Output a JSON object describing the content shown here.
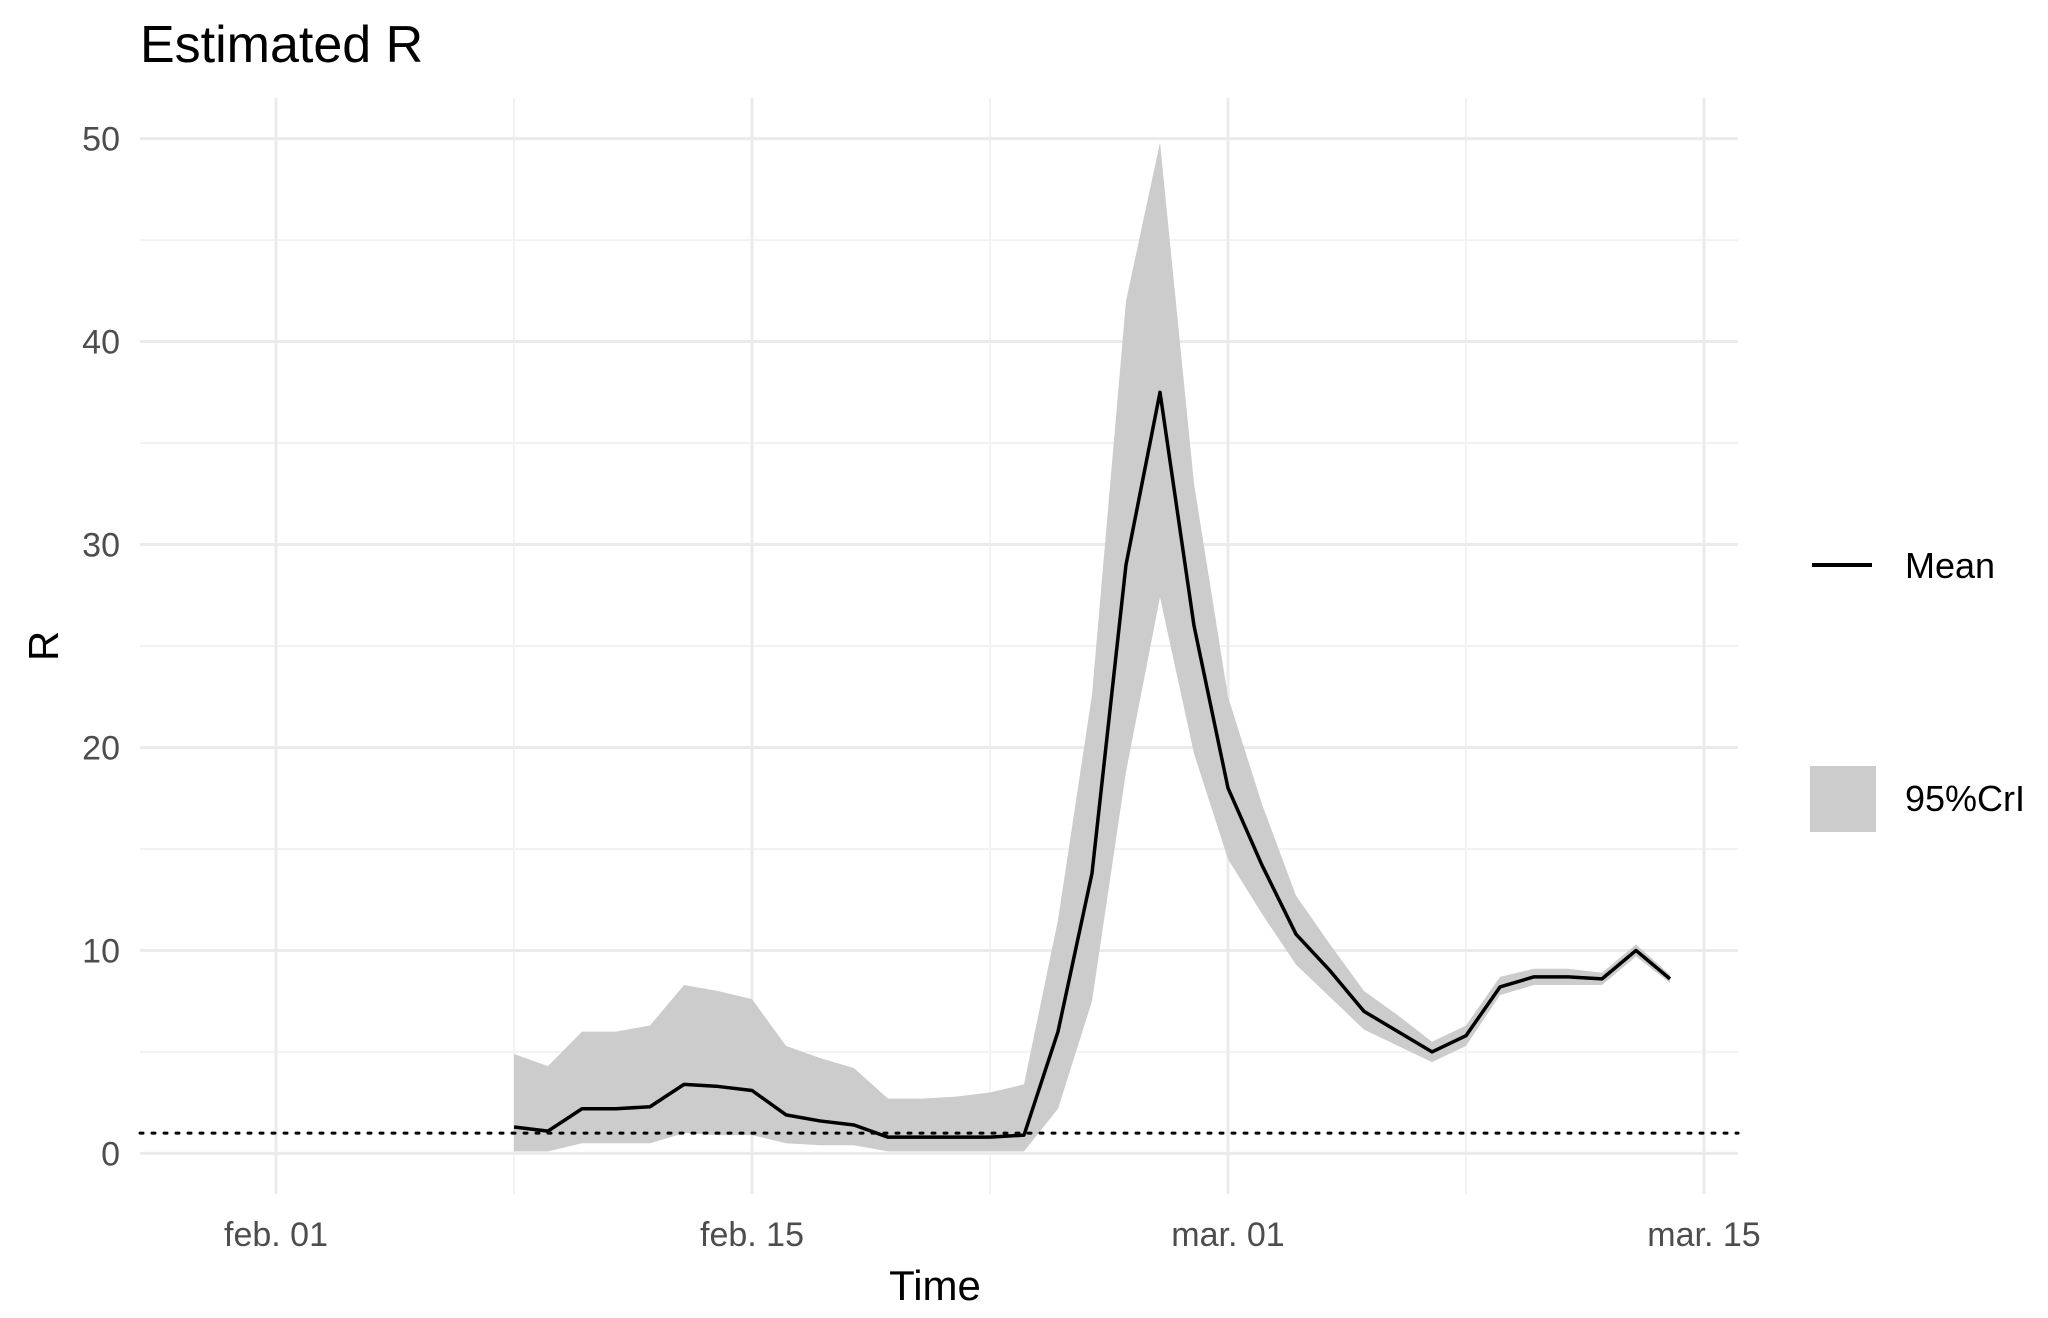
{
  "chart_data": {
    "type": "line",
    "title": "Estimated R",
    "xlabel": "Time",
    "ylabel": "R",
    "x_ticks": [
      "feb. 01",
      "feb. 15",
      "mar. 01",
      "mar. 15"
    ],
    "y_ticks": [
      0,
      10,
      20,
      30,
      40,
      50
    ],
    "ylim": [
      -2,
      52
    ],
    "xlim": [
      "2021-01-28",
      "2021-03-16"
    ],
    "reference_line": {
      "y": 1,
      "style": "dotted"
    },
    "grid": true,
    "legend": {
      "position": "right",
      "entries": [
        "Mean",
        "95%CrI"
      ]
    },
    "series": [
      {
        "name": "Mean",
        "type": "line",
        "color": "#000000",
        "x": [
          "2021-02-08",
          "2021-02-09",
          "2021-02-10",
          "2021-02-11",
          "2021-02-12",
          "2021-02-13",
          "2021-02-14",
          "2021-02-15",
          "2021-02-16",
          "2021-02-17",
          "2021-02-18",
          "2021-02-19",
          "2021-02-20",
          "2021-02-21",
          "2021-02-22",
          "2021-02-23",
          "2021-02-24",
          "2021-02-25",
          "2021-02-26",
          "2021-02-27",
          "2021-02-28",
          "2021-03-01",
          "2021-03-02",
          "2021-03-03",
          "2021-03-04",
          "2021-03-05",
          "2021-03-06",
          "2021-03-07",
          "2021-03-08",
          "2021-03-09",
          "2021-03-10",
          "2021-03-11",
          "2021-03-12",
          "2021-03-13",
          "2021-03-14"
        ],
        "y": [
          1.3,
          1.1,
          2.2,
          2.2,
          2.3,
          3.4,
          3.3,
          3.1,
          1.9,
          1.6,
          1.4,
          0.8,
          0.8,
          0.8,
          0.8,
          0.9,
          6.0,
          13.8,
          29.0,
          37.5,
          26.0,
          18.0,
          14.2,
          10.8,
          9.0,
          7.0,
          6.0,
          5.0,
          5.8,
          8.2,
          8.7,
          8.7,
          8.6,
          10.0,
          8.6
        ]
      },
      {
        "name": "95%CrI",
        "type": "band",
        "color": "#cccccc",
        "x": [
          "2021-02-08",
          "2021-02-09",
          "2021-02-10",
          "2021-02-11",
          "2021-02-12",
          "2021-02-13",
          "2021-02-14",
          "2021-02-15",
          "2021-02-16",
          "2021-02-17",
          "2021-02-18",
          "2021-02-19",
          "2021-02-20",
          "2021-02-21",
          "2021-02-22",
          "2021-02-23",
          "2021-02-24",
          "2021-02-25",
          "2021-02-26",
          "2021-02-27",
          "2021-02-28",
          "2021-03-01",
          "2021-03-02",
          "2021-03-03",
          "2021-03-04",
          "2021-03-05",
          "2021-03-06",
          "2021-03-07",
          "2021-03-08",
          "2021-03-09",
          "2021-03-10",
          "2021-03-11",
          "2021-03-12",
          "2021-03-13",
          "2021-03-14"
        ],
        "lower": [
          0.1,
          0.1,
          0.5,
          0.5,
          0.5,
          1.0,
          0.9,
          0.9,
          0.5,
          0.4,
          0.4,
          0.1,
          0.1,
          0.1,
          0.1,
          0.1,
          2.2,
          7.5,
          18.8,
          27.4,
          19.7,
          14.5,
          11.8,
          9.3,
          7.7,
          6.1,
          5.3,
          4.5,
          5.3,
          7.8,
          8.3,
          8.3,
          8.3,
          9.7,
          8.4
        ],
        "upper": [
          4.9,
          4.3,
          6.0,
          6.0,
          6.3,
          8.3,
          8.0,
          7.6,
          5.3,
          4.7,
          4.2,
          2.7,
          2.7,
          2.8,
          3.0,
          3.4,
          11.5,
          22.6,
          42.0,
          49.8,
          33.0,
          22.5,
          17.2,
          12.7,
          10.3,
          8.0,
          6.8,
          5.5,
          6.3,
          8.7,
          9.1,
          9.1,
          8.9,
          10.3,
          8.8
        ]
      }
    ]
  }
}
